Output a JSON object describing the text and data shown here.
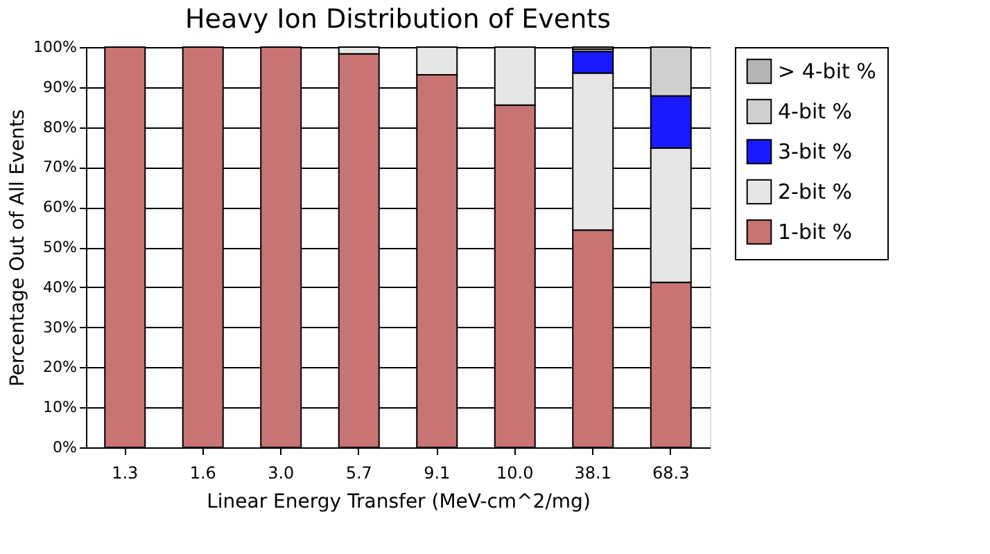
{
  "chart_data": {
    "type": "bar",
    "title": "Heavy Ion Distribution of Events",
    "xlabel": "Linear Energy Transfer (MeV-cm^2/mg)",
    "ylabel": "Percentage Out of All Events",
    "categories": [
      "1.3",
      "1.6",
      "3.0",
      "5.7",
      "9.1",
      "10.0",
      "38.1",
      "68.3"
    ],
    "stacked": true,
    "series": [
      {
        "name": "1-bit %",
        "color": "#c87474",
        "values": [
          100,
          100,
          100,
          98.3,
          93.1,
          85.5,
          54.3,
          41.2
        ]
      },
      {
        "name": "2-bit %",
        "color": "#e6e6e6",
        "values": [
          null,
          null,
          null,
          1.7,
          6.9,
          14.5,
          39.2,
          33.6
        ]
      },
      {
        "name": "3-bit %",
        "color": "#1a1aff",
        "values": [
          null,
          null,
          null,
          null,
          null,
          null,
          5.4,
          13.0
        ]
      },
      {
        "name": "4-bit %",
        "color": "#cfcfcf",
        "values": [
          null,
          null,
          null,
          null,
          null,
          null,
          0.6,
          12.2
        ]
      },
      {
        "name": "> 4-bit %",
        "color": "#b4b4b4",
        "values": [
          null,
          null,
          null,
          null,
          null,
          null,
          0.5,
          null
        ]
      }
    ],
    "ylim": [
      0,
      100
    ],
    "yticks": [
      {
        "value": 0,
        "label": "0%"
      },
      {
        "value": 10,
        "label": "10%"
      },
      {
        "value": 20,
        "label": "20%"
      },
      {
        "value": 30,
        "label": "30%"
      },
      {
        "value": 40,
        "label": "40%"
      },
      {
        "value": 50,
        "label": "50%"
      },
      {
        "value": 60,
        "label": "60%"
      },
      {
        "value": 70,
        "label": "70%"
      },
      {
        "value": 80,
        "label": "80%"
      },
      {
        "value": 90,
        "label": "90%"
      },
      {
        "value": 100,
        "label": "100%"
      }
    ],
    "grid": "y",
    "legend": "right"
  }
}
